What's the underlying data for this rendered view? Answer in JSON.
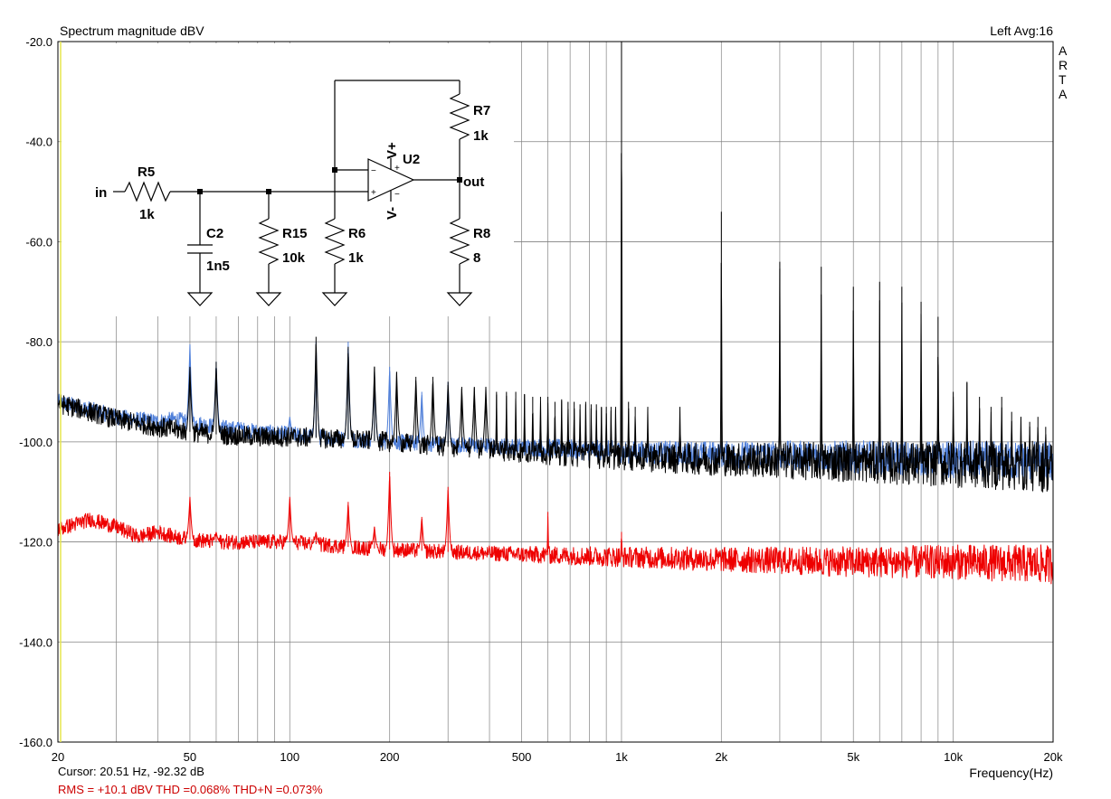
{
  "header": {
    "title": "Spectrum magnitude dBV",
    "channel_avg": "Left  Avg:16",
    "brand": [
      "A",
      "R",
      "T",
      "A"
    ]
  },
  "footer": {
    "cursor": "Cursor: 20.51 Hz, -92.32 dB",
    "stats": "RMS =  +10.1 dBV   THD =0.068%   THD+N =0.073%"
  },
  "colors": {
    "series_black": "#000000",
    "series_blue": "#4f7fd9",
    "series_red": "#ee0000",
    "stats_text": "#cc0000",
    "grid": "#808080",
    "left_marker": "#e6e64d"
  },
  "schematic": {
    "labels": {
      "in": "in",
      "out": "out",
      "R5": "R5",
      "R5v": "1k",
      "C2": "C2",
      "C2v": "1n5",
      "R15": "R15",
      "R15v": "10k",
      "R6": "R6",
      "R6v": "1k",
      "R7": "R7",
      "R7v": "1k",
      "R8": "R8",
      "R8v": "8",
      "U2": "U2",
      "Vp": "V+",
      "Vm": "V-",
      "minus": "−",
      "plus": "+"
    }
  },
  "chart_data": {
    "type": "line",
    "title": "Spectrum magnitude dBV",
    "xlabel": "Frequency(Hz)",
    "ylabel": "",
    "xscale": "log",
    "xlim": [
      20,
      20000
    ],
    "ylim": [
      -160,
      -20
    ],
    "grid": true,
    "x_ticks": [
      {
        "v": 20,
        "label": "20"
      },
      {
        "v": 50,
        "label": "50"
      },
      {
        "v": 100,
        "label": "100"
      },
      {
        "v": 200,
        "label": "200"
      },
      {
        "v": 500,
        "label": "500"
      },
      {
        "v": 1000,
        "label": "1k"
      },
      {
        "v": 2000,
        "label": "2k"
      },
      {
        "v": 5000,
        "label": "5k"
      },
      {
        "v": 10000,
        "label": "10k"
      },
      {
        "v": 20000,
        "label": "20k"
      }
    ],
    "y_ticks": [
      {
        "v": -20,
        "label": "-20.0"
      },
      {
        "v": -40,
        "label": "-40.0"
      },
      {
        "v": -60,
        "label": "-60.0"
      },
      {
        "v": -80,
        "label": "-80.0"
      },
      {
        "v": -100,
        "label": "-100.0"
      },
      {
        "v": -120,
        "label": "-120.0"
      },
      {
        "v": -140,
        "label": "-140.0"
      },
      {
        "v": -160,
        "label": "-160.0"
      }
    ],
    "series": [
      {
        "color": "#4f7fd9",
        "floor": [
          [
            20,
            -92
          ],
          [
            25,
            -93.5
          ],
          [
            30,
            -95
          ],
          [
            40,
            -96
          ],
          [
            45,
            -95.5
          ],
          [
            60,
            -97
          ],
          [
            80,
            -98
          ],
          [
            100,
            -98.5
          ],
          [
            150,
            -99.5
          ],
          [
            200,
            -100
          ],
          [
            300,
            -100.5
          ],
          [
            500,
            -101
          ],
          [
            1000,
            -102
          ],
          [
            2000,
            -102.5
          ],
          [
            5000,
            -103
          ],
          [
            10000,
            -103.5
          ],
          [
            20000,
            -104
          ]
        ],
        "noise": 1.6,
        "spikes": [
          [
            50,
            -80.5
          ],
          [
            60,
            -84
          ],
          [
            70,
            -96
          ],
          [
            100,
            -95
          ],
          [
            120,
            -80
          ],
          [
            150,
            -80
          ],
          [
            180,
            -86
          ],
          [
            200,
            -85
          ],
          [
            250,
            -90
          ],
          [
            300,
            -88
          ]
        ]
      },
      {
        "color": "#000000",
        "floor": [
          [
            20,
            -92.3
          ],
          [
            25,
            -94
          ],
          [
            30,
            -95.5
          ],
          [
            40,
            -97
          ],
          [
            50,
            -98
          ],
          [
            60,
            -98.5
          ],
          [
            80,
            -99
          ],
          [
            100,
            -99
          ],
          [
            150,
            -99.5
          ],
          [
            200,
            -100
          ],
          [
            300,
            -101
          ],
          [
            500,
            -102
          ],
          [
            1000,
            -103
          ],
          [
            2000,
            -103.5
          ],
          [
            5000,
            -104
          ],
          [
            10000,
            -104.5
          ],
          [
            20000,
            -105
          ]
        ],
        "noise": 2.0,
        "spikes": [
          [
            50,
            -85
          ],
          [
            60,
            -84
          ],
          [
            120,
            -79
          ],
          [
            150,
            -81
          ],
          [
            180,
            -85
          ],
          [
            210,
            -86
          ],
          [
            240,
            -87
          ],
          [
            270,
            -87
          ],
          [
            300,
            -88
          ],
          [
            330,
            -89
          ],
          [
            360,
            -89
          ],
          [
            390,
            -89
          ],
          [
            420,
            -90
          ],
          [
            450,
            -90
          ],
          [
            480,
            -90
          ],
          [
            510,
            -90.5
          ],
          [
            540,
            -91
          ],
          [
            570,
            -91
          ],
          [
            600,
            -91
          ],
          [
            630,
            -92
          ],
          [
            660,
            -91.5
          ],
          [
            690,
            -92
          ],
          [
            720,
            -92
          ],
          [
            750,
            -92.5
          ],
          [
            780,
            -92
          ],
          [
            810,
            -92.5
          ],
          [
            840,
            -92.5
          ],
          [
            870,
            -93
          ],
          [
            900,
            -93
          ],
          [
            930,
            -93
          ],
          [
            960,
            -93
          ],
          [
            1000,
            -20
          ],
          [
            1050,
            -92
          ],
          [
            1100,
            -93
          ],
          [
            1200,
            -93
          ],
          [
            1500,
            -93
          ],
          [
            2000,
            -54
          ],
          [
            3000,
            -64
          ],
          [
            4000,
            -65
          ],
          [
            5000,
            -69
          ],
          [
            6000,
            -68
          ],
          [
            7000,
            -69
          ],
          [
            8000,
            -72
          ],
          [
            9000,
            -75
          ],
          [
            10000,
            -90
          ],
          [
            11000,
            -88
          ],
          [
            12000,
            -91
          ],
          [
            13000,
            -93
          ],
          [
            14000,
            -91
          ],
          [
            15000,
            -94
          ],
          [
            16000,
            -95
          ],
          [
            17000,
            -96
          ],
          [
            18000,
            -95
          ],
          [
            19000,
            -97
          ]
        ],
        "spike_lines": [
          [
            1000,
            -37
          ],
          [
            2000,
            -77
          ]
        ]
      },
      {
        "color": "#ee0000",
        "floor": [
          [
            20,
            -117.5
          ],
          [
            25,
            -115.5
          ],
          [
            30,
            -117
          ],
          [
            35,
            -119
          ],
          [
            40,
            -118
          ],
          [
            45,
            -119
          ],
          [
            50,
            -119.5
          ],
          [
            60,
            -120
          ],
          [
            80,
            -120
          ],
          [
            100,
            -120
          ],
          [
            150,
            -121
          ],
          [
            200,
            -121.5
          ],
          [
            300,
            -122
          ],
          [
            500,
            -122.5
          ],
          [
            1000,
            -123
          ],
          [
            2000,
            -123.5
          ],
          [
            5000,
            -124
          ],
          [
            10000,
            -124
          ],
          [
            20000,
            -124.5
          ]
        ],
        "noise": 1.5,
        "spikes": [
          [
            50,
            -111
          ],
          [
            60,
            -118
          ],
          [
            100,
            -111
          ],
          [
            120,
            -118
          ],
          [
            150,
            -112
          ],
          [
            180,
            -117
          ],
          [
            200,
            -106
          ],
          [
            250,
            -115
          ],
          [
            300,
            -109
          ],
          [
            600,
            -114
          ],
          [
            1000,
            -118
          ]
        ]
      }
    ]
  }
}
